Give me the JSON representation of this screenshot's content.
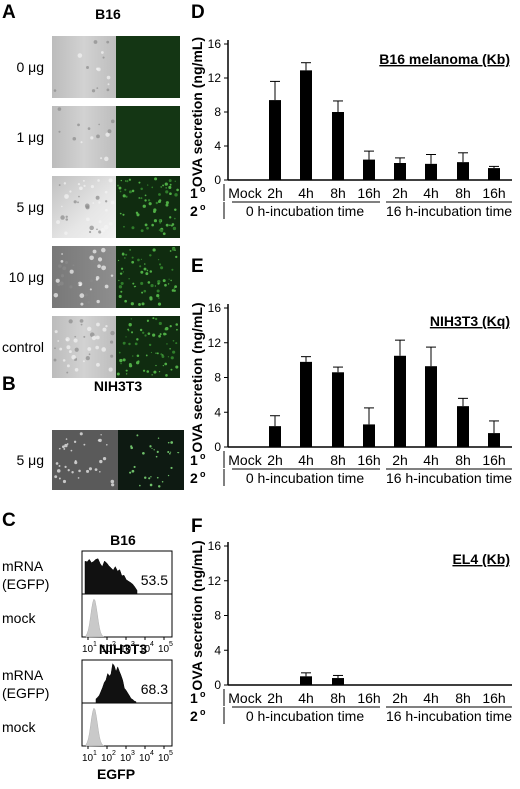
{
  "panels": {
    "A": {
      "letter": "A",
      "cell_line": "B16",
      "rows": [
        {
          "label": "0 μg",
          "gfp_intensity": 0
        },
        {
          "label": "1 μg",
          "gfp_intensity": 0
        },
        {
          "label": "5 μg",
          "gfp_intensity": 1
        },
        {
          "label": "10 μg",
          "gfp_intensity": 1
        },
        {
          "label": "control",
          "gfp_intensity": 1
        }
      ]
    },
    "B": {
      "letter": "B",
      "cell_line": "NIH3T3",
      "rows": [
        {
          "label": "5 μg",
          "gfp_intensity": 1
        }
      ]
    },
    "C": {
      "letter": "C",
      "xlabel": "EGFP",
      "x_ticks": [
        "10",
        "10",
        "10",
        "10",
        "10"
      ],
      "x_tick_exps": [
        "1",
        "2",
        "3",
        "4",
        "5"
      ],
      "histograms": [
        {
          "title": "B16",
          "sample_label_1": "mRNA",
          "sample_label_2": "(EGFP)",
          "value": "53.5",
          "mock_label": "mock"
        },
        {
          "title": "NIH3T3",
          "sample_label_1": "mRNA",
          "sample_label_2": "(EGFP)",
          "value": "68.3",
          "mock_label": "mock"
        }
      ]
    }
  },
  "row_labels": {
    "first": "1",
    "second": "2",
    "superscript": "o"
  },
  "chart_data": [
    {
      "type": "bar",
      "letter": "D",
      "title": "B16 melanoma (Kb)",
      "ylabel": "OVA secretion (ng/mL)",
      "ylim": [
        0,
        16
      ],
      "yticks": [
        0,
        4,
        8,
        12,
        16
      ],
      "categories": [
        "Mock",
        "2h",
        "4h",
        "8h",
        "16h",
        "2h",
        "4h",
        "8h",
        "16h"
      ],
      "values": [
        0,
        9.4,
        12.9,
        8.0,
        2.4,
        2.0,
        1.9,
        2.1,
        1.4
      ],
      "errors": [
        0,
        2.2,
        0.9,
        1.3,
        1.0,
        0.6,
        1.1,
        1.1,
        0.2
      ],
      "group_labels": [
        "0 h-incubation time",
        "16 h-incubation time"
      ]
    },
    {
      "type": "bar",
      "letter": "E",
      "title": "NIH3T3 (Kq)",
      "ylabel": "OVA secretion (ng/mL)",
      "ylim": [
        0,
        16
      ],
      "yticks": [
        0,
        4,
        8,
        12,
        16
      ],
      "categories": [
        "Mock",
        "2h",
        "4h",
        "8h",
        "16h",
        "2h",
        "4h",
        "8h",
        "16h"
      ],
      "values": [
        0,
        2.4,
        9.8,
        8.6,
        2.6,
        10.5,
        9.3,
        4.7,
        1.6
      ],
      "errors": [
        0,
        1.2,
        0.6,
        0.6,
        1.9,
        1.8,
        2.2,
        0.9,
        1.4
      ],
      "group_labels": [
        "0 h-incubation time",
        "16 h-incubation time"
      ]
    },
    {
      "type": "bar",
      "letter": "F",
      "title": "EL4 (Kb)",
      "ylabel": "OVA secretion (ng/mL)",
      "ylim": [
        0,
        16
      ],
      "yticks": [
        0,
        4,
        8,
        12,
        16
      ],
      "categories": [
        "Mock",
        "2h",
        "4h",
        "8h",
        "16h",
        "2h",
        "4h",
        "8h",
        "16h"
      ],
      "values": [
        0,
        0,
        1.0,
        0.8,
        0,
        0,
        0,
        0,
        0
      ],
      "errors": [
        0,
        0,
        0.4,
        0.3,
        0,
        0,
        0,
        0,
        0
      ],
      "group_labels": [
        "0 h-incubation time",
        "16 h-incubation time"
      ]
    }
  ]
}
